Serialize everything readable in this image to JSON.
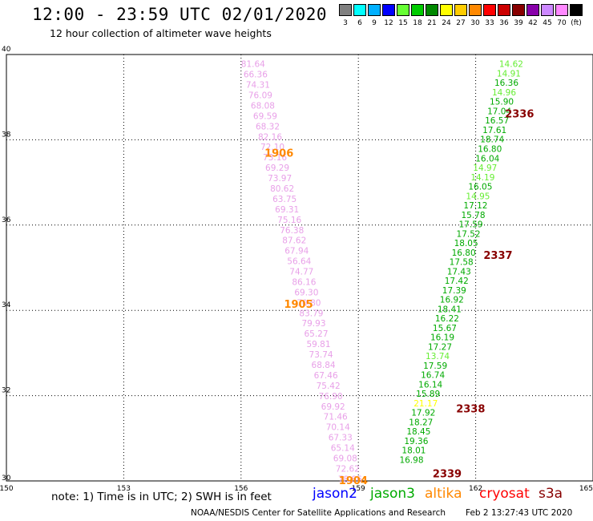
{
  "title": "12:00 - 23:59 UTC 02/01/2020",
  "subtitle": "12 hour collection of altimeter wave heights",
  "scale": {
    "unit": "(ft)",
    "bins": [
      {
        "label": "3",
        "color": "#808080"
      },
      {
        "label": "6",
        "color": "#00ffff"
      },
      {
        "label": "9",
        "color": "#00b0ff"
      },
      {
        "label": "12",
        "color": "#0000ff"
      },
      {
        "label": "15",
        "color": "#66ff33"
      },
      {
        "label": "18",
        "color": "#00cc00"
      },
      {
        "label": "21",
        "color": "#008800"
      },
      {
        "label": "24",
        "color": "#ffff00"
      },
      {
        "label": "27",
        "color": "#ffcc00"
      },
      {
        "label": "30",
        "color": "#ff8800"
      },
      {
        "label": "33",
        "color": "#ff0000"
      },
      {
        "label": "36",
        "color": "#cc0000"
      },
      {
        "label": "39",
        "color": "#880000"
      },
      {
        "label": "42",
        "color": "#8800aa"
      },
      {
        "label": "45",
        "color": "#cc88ff"
      },
      {
        "label": "70",
        "color": "#ff88ff"
      },
      {
        "label": "",
        "color": "#000000"
      }
    ]
  },
  "axes": {
    "lon_ticks": [
      "150",
      "153",
      "156",
      "159",
      "162",
      "165"
    ],
    "lat_ticks": [
      "30",
      "32",
      "34",
      "36",
      "38",
      "40"
    ],
    "lon_range": [
      150,
      165
    ],
    "lat_range": [
      30,
      40
    ]
  },
  "tracks": [
    {
      "color": "#e8a0e8",
      "values": [
        "81.64",
        "66.36",
        "74.31",
        "76.09",
        "68.08",
        "69.59",
        "68.32",
        "82.16",
        "72.10",
        "73.16",
        "69.29",
        "73.97",
        "80.62",
        "63.75",
        "69.31",
        "75.16",
        "76.38",
        "87.62",
        "67.94",
        "56.64",
        "74.77",
        "86.16",
        "69.30",
        "70.80",
        "83.79",
        "79.93",
        "65.27",
        "59.81",
        "73.74",
        "68.84",
        "67.46",
        "75.42",
        "76.90",
        "69.92",
        "71.46",
        "70.14",
        "67.33",
        "65.14",
        "69.08",
        "72.62",
        "78.86"
      ],
      "lat_start": 39.78,
      "lat_end": 30.05,
      "lon_start": 156.0,
      "lon_end": 158.48
    },
    {
      "color": "#00aa00",
      "values": [
        "14.62",
        "14.91",
        "16.36",
        "14.96",
        "15.90",
        "17.04",
        "16.57",
        "17.61",
        "18.74",
        "16.80",
        "16.04",
        "14.97",
        "14.19",
        "16.05",
        "14.95",
        "17.12",
        "15.78",
        "17.59",
        "17.52",
        "18.05",
        "16.80",
        "17.58",
        "17.43",
        "17.42",
        "17.39",
        "16.92",
        "18.41",
        "16.22",
        "15.67",
        "16.19",
        "17.27",
        "13.74",
        "17.59",
        "16.74",
        "16.14",
        "15.89",
        "21.17",
        "17.92",
        "18.27",
        "18.45",
        "19.36",
        "18.01",
        "16.98"
      ],
      "value_colors": {
        "0": "#66ee33",
        "1": "#66ee33",
        "3": "#66ee33",
        "11": "#66ee33",
        "12": "#66ee33",
        "14": "#66ee33",
        "31": "#66ee33",
        "36": "#ffff00"
      },
      "lat_start": 39.78,
      "lat_end": 30.5,
      "lon_start": 162.6,
      "lon_end": 160.05
    }
  ],
  "pass_labels": [
    {
      "text": "1906",
      "color": "#ff8800",
      "lon": 156.6,
      "lat": 37.7
    },
    {
      "text": "1905",
      "color": "#ff8800",
      "lon": 157.1,
      "lat": 34.15
    },
    {
      "text": "1904",
      "color": "#ff8800",
      "lon": 158.5,
      "lat": 30.02
    },
    {
      "text": "2336",
      "color": "#880000",
      "lon": 162.75,
      "lat": 38.62
    },
    {
      "text": "2337",
      "color": "#880000",
      "lon": 162.2,
      "lat": 35.3
    },
    {
      "text": "2338",
      "color": "#880000",
      "lon": 161.5,
      "lat": 31.7
    },
    {
      "text": "2339",
      "color": "#880000",
      "lon": 160.9,
      "lat": 30.18
    }
  ],
  "note": "note: 1) Time is in UTC; 2) SWH is in feet",
  "legend": [
    {
      "name": "jason2",
      "color": "#0000ff"
    },
    {
      "name": "jason3",
      "color": "#00aa00"
    },
    {
      "name": "altika",
      "color": "#ff8800"
    },
    {
      "name": "cryosat",
      "color": "#ff0000"
    },
    {
      "name": "s3a",
      "color": "#880000"
    }
  ],
  "credit": "NOAA/NESDIS Center for Satellite Applications and Research",
  "timestamp": "Feb  2 13:27:43 UTC 2020"
}
